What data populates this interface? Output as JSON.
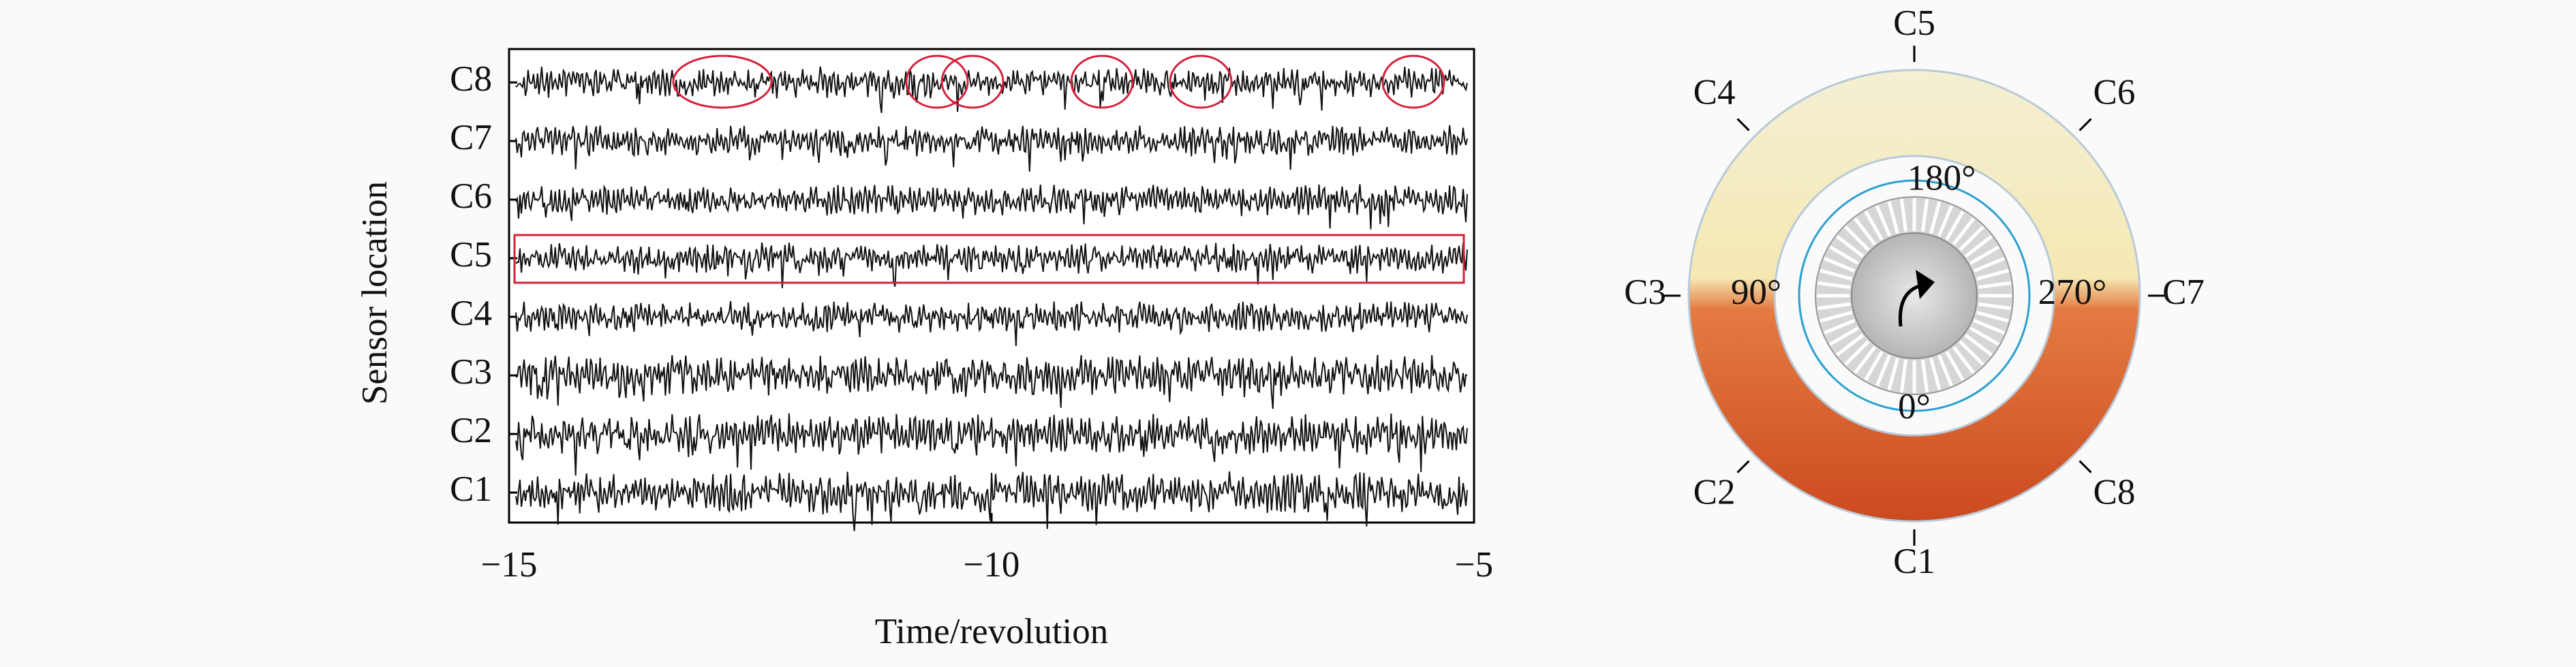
{
  "chart_data": {
    "type": "signal-traces",
    "xlabel": "Time/revolution",
    "ylabel": "Sensor location",
    "categories": [
      "C1",
      "C2",
      "C3",
      "C4",
      "C5",
      "C6",
      "C7",
      "C8"
    ],
    "xlim": [
      -15,
      -5
    ],
    "xticks": [
      {
        "value": -15,
        "label": "−15"
      },
      {
        "value": -10,
        "label": "−10"
      },
      {
        "value": -5,
        "label": "−5"
      }
    ]
  },
  "diagram": {
    "sensors": [
      "C1",
      "C2",
      "C3",
      "C4",
      "C5",
      "C6",
      "C7",
      "C8"
    ],
    "angles": [
      "0°",
      "90°",
      "180°",
      "270°"
    ]
  }
}
